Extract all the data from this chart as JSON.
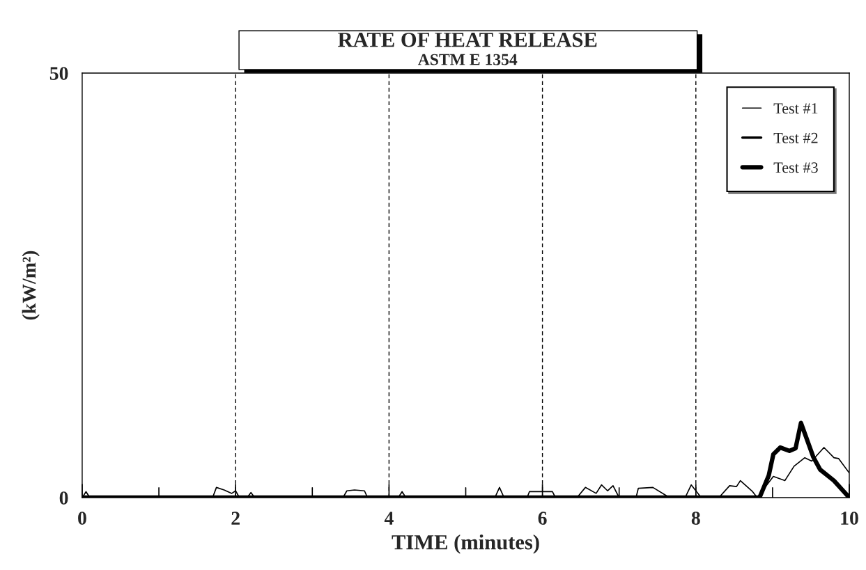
{
  "chart_data": {
    "type": "line",
    "title": "RATE OF HEAT RELEASE",
    "subtitle": "ASTM E 1354",
    "xlabel": "TIME (minutes)",
    "ylabel": "(kW/m²)",
    "xlim": [
      0,
      10
    ],
    "ylim": [
      0,
      50
    ],
    "xticks": [
      0,
      {
        "value": 1,
        "label": null
      },
      2,
      {
        "value": 3,
        "label": null
      },
      4,
      {
        "value": 5,
        "label": null
      },
      6,
      {
        "value": 7,
        "label": null
      },
      8,
      {
        "value": 9,
        "label": null
      },
      10
    ],
    "yticks": [
      0,
      50
    ],
    "grid": "x",
    "legend": "top right",
    "line_style": "solid",
    "marker": "none",
    "series": [
      {
        "name": "Test #1",
        "color": "#000000",
        "x": [
          0,
          0.05,
          0.1,
          1.7,
          1.75,
          1.85,
          1.95,
          2.0,
          2.05,
          2.15,
          2.2,
          2.25,
          3.4,
          3.45,
          3.55,
          3.68,
          3.72,
          4.12,
          4.17,
          4.22,
          5.38,
          5.44,
          5.5,
          5.8,
          5.83,
          6.13,
          6.17,
          6.45,
          6.56,
          6.7,
          6.77,
          6.85,
          6.92,
          7.0,
          7.22,
          7.25,
          7.44,
          7.62,
          7.7,
          7.86,
          7.94,
          8.07,
          8.3,
          8.44,
          8.53,
          8.58,
          8.74,
          8.8,
          9.01,
          9.16,
          9.28,
          9.42,
          9.51,
          9.67,
          9.8,
          9.86,
          10.0
        ],
        "values": [
          0,
          0.7,
          0,
          0,
          1.2,
          0.9,
          0.5,
          0.8,
          0,
          0,
          0.6,
          0,
          0,
          0.8,
          0.9,
          0.8,
          0,
          0,
          0.7,
          0,
          0,
          1.2,
          0,
          0,
          0.7,
          0.7,
          0,
          0,
          1.2,
          0.5,
          1.5,
          0.8,
          1.4,
          0,
          0,
          1.1,
          1.2,
          0.2,
          0,
          0,
          1.5,
          0,
          0,
          1.4,
          1.3,
          2.0,
          0.7,
          0,
          2.5,
          2.0,
          3.7,
          4.7,
          4.3,
          5.9,
          4.7,
          4.6,
          2.9
        ]
      },
      {
        "name": "Test #2",
        "color": "#000000"
      },
      {
        "name": "Test #3",
        "color": "#000000",
        "x": [
          0,
          8.83,
          8.95,
          9.01,
          9.1,
          9.22,
          9.3,
          9.37,
          9.53,
          9.62,
          9.8,
          10.0
        ],
        "values": [
          0,
          0,
          2.6,
          5.1,
          5.9,
          5.5,
          5.8,
          8.8,
          4.8,
          3.3,
          2.0,
          0
        ]
      }
    ]
  }
}
